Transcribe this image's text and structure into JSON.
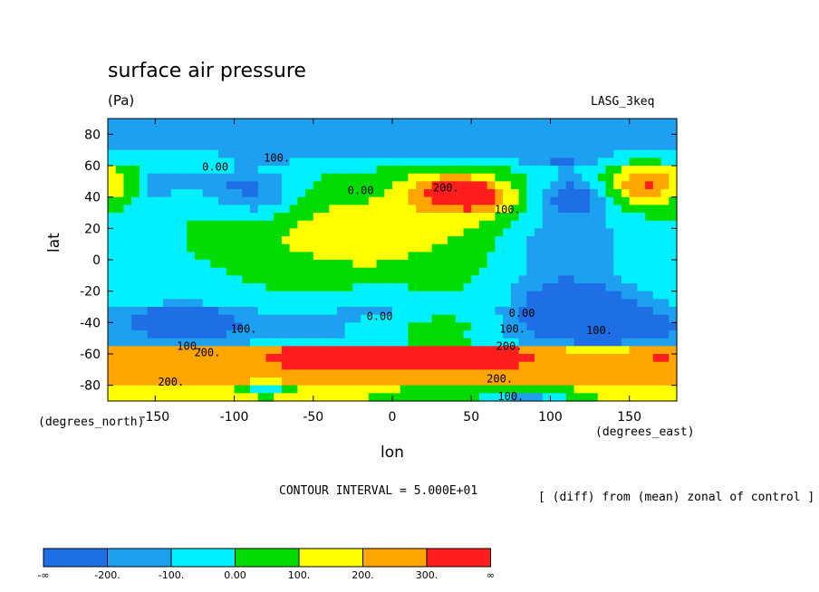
{
  "header": {
    "title": "surface air pressure",
    "units": "(Pa)",
    "model": "LASG_3keq"
  },
  "axes": {
    "x_title": "lon",
    "y_title": "lat",
    "x_units": "(degrees_east)",
    "y_units": "(degrees_north)"
  },
  "footer": {
    "contour_interval": "CONTOUR INTERVAL = 5.000E+01",
    "note": "[ (diff) from (mean) zonal of control ]"
  },
  "chart_data": {
    "type": "heatmap",
    "title": "surface air pressure",
    "xlabel": "lon",
    "ylabel": "lat",
    "xlim": [
      -180,
      180
    ],
    "ylim": [
      -90,
      90
    ],
    "x_ticks": [
      "-150",
      "-100",
      "-50",
      "0",
      "50",
      "100",
      "150"
    ],
    "x_tick_values": [
      -150,
      -100,
      -50,
      0,
      50,
      100,
      150
    ],
    "y_ticks": [
      "80",
      "60",
      "40",
      "20",
      "0",
      "-20",
      "-40",
      "-60",
      "-80"
    ],
    "y_tick_values": [
      80,
      60,
      40,
      20,
      0,
      -20,
      -40,
      -60,
      -80
    ],
    "levels": [
      -200,
      -100,
      0,
      100,
      200,
      300
    ],
    "colorbar_labels": [
      "-∞",
      "-200.",
      "-100.",
      "0.00",
      "100.",
      "200.",
      "300.",
      "∞"
    ],
    "colorbar_colors": [
      "#1e6ee6",
      "#1ea0f0",
      "#00f0ff",
      "#00dc00",
      "#ffff00",
      "#ffa500",
      "#ff1e1e"
    ],
    "contour_labels": [
      {
        "text": "100.",
        "lon": -73,
        "lat": 65
      },
      {
        "text": "0.00",
        "lon": -112,
        "lat": 59
      },
      {
        "text": "0.00",
        "lon": -20,
        "lat": 44
      },
      {
        "text": "200.",
        "lon": 34,
        "lat": 46
      },
      {
        "text": "100.",
        "lon": 73,
        "lat": 32
      },
      {
        "text": "0.00",
        "lon": -8,
        "lat": -36
      },
      {
        "text": "100.",
        "lon": -94,
        "lat": -44
      },
      {
        "text": "100.",
        "lon": -128,
        "lat": -55
      },
      {
        "text": "200.",
        "lon": -117,
        "lat": -59
      },
      {
        "text": "0.00",
        "lon": 82,
        "lat": -34
      },
      {
        "text": "100.",
        "lon": 76,
        "lat": -44
      },
      {
        "text": "200.",
        "lon": 74,
        "lat": -55
      },
      {
        "text": "100.",
        "lon": 131,
        "lat": -45
      },
      {
        "text": "200.",
        "lon": -140,
        "lat": -78
      },
      {
        "text": "200.",
        "lon": 68,
        "lat": -76
      },
      {
        "text": "100.",
        "lon": 75,
        "lat": -87
      }
    ]
  }
}
